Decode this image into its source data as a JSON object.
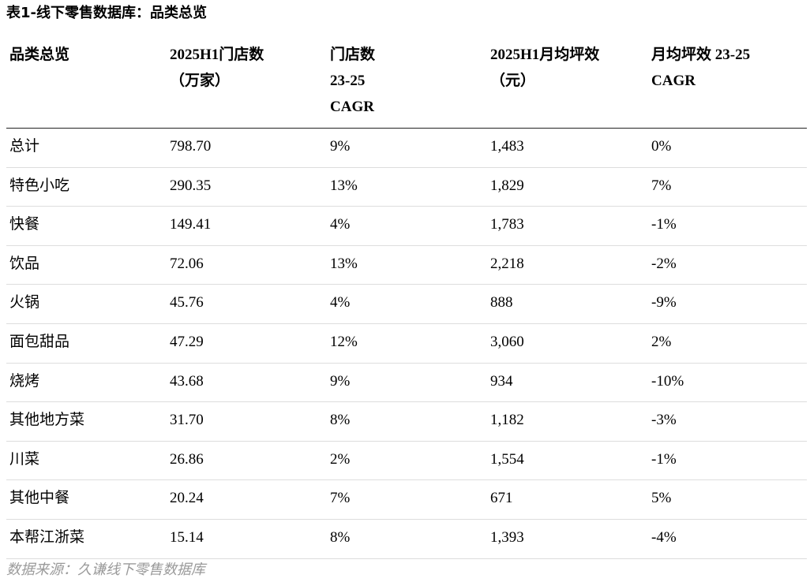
{
  "title": "表1-线下零售数据库：品类总览",
  "table": {
    "header": [
      [
        "品类总览"
      ],
      [
        "2025H1门店数",
        "（万家）"
      ],
      [
        "门店数",
        "23-25",
        "CAGR"
      ],
      [
        "2025H1月均坪效",
        "（元）"
      ],
      [
        "月均坪效 23-25",
        "CAGR"
      ]
    ],
    "rows": [
      [
        "总计",
        "798.70",
        "9%",
        "1,483",
        "0%"
      ],
      [
        "特色小吃",
        "290.35",
        "13%",
        "1,829",
        "7%"
      ],
      [
        "快餐",
        "149.41",
        "4%",
        "1,783",
        "-1%"
      ],
      [
        "饮品",
        "72.06",
        "13%",
        "2,218",
        "-2%"
      ],
      [
        "火锅",
        "45.76",
        "4%",
        "888",
        "-9%"
      ],
      [
        "面包甜品",
        "47.29",
        "12%",
        "3,060",
        "2%"
      ],
      [
        "烧烤",
        "43.68",
        "9%",
        "934",
        "-10%"
      ],
      [
        "其他地方菜",
        "31.70",
        "8%",
        "1,182",
        "-3%"
      ],
      [
        "川菜",
        "26.86",
        "2%",
        "1,554",
        "-1%"
      ],
      [
        "其他中餐",
        "20.24",
        "7%",
        "671",
        "5%"
      ],
      [
        "本帮江浙菜",
        "15.14",
        "8%",
        "1,393",
        "-4%"
      ]
    ]
  },
  "source": "数据来源：久谦线下零售数据库"
}
